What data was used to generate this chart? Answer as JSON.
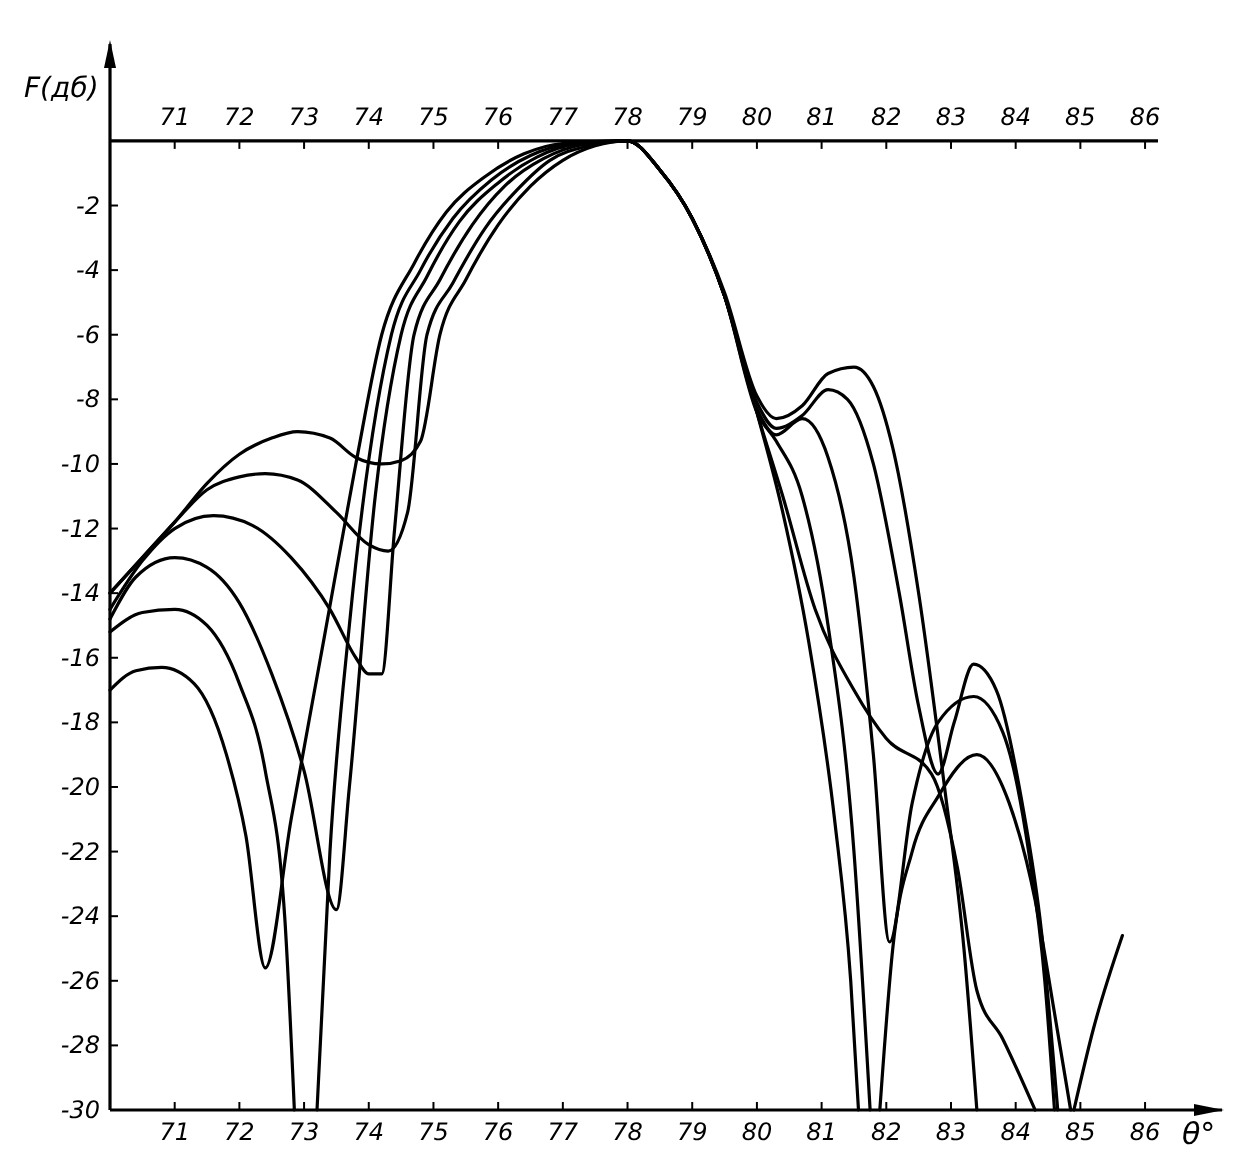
{
  "chart_data": {
    "type": "line",
    "ylabel": "F(дб)",
    "xlabel": "θ°",
    "xlim": [
      70,
      86.2
    ],
    "ylim": [
      -30,
      3
    ],
    "xticks": [
      71,
      72,
      73,
      74,
      75,
      76,
      77,
      78,
      79,
      80,
      81,
      82,
      83,
      84,
      85,
      86
    ],
    "x2lim": [
      70,
      86.2
    ],
    "x2ticks": [
      71,
      72,
      73,
      74,
      75,
      76,
      77,
      78,
      79,
      80,
      81,
      82,
      83,
      84,
      85,
      86
    ],
    "yticks": [
      {
        "value": 0,
        "label": null
      },
      -2,
      -4,
      -6,
      -8,
      -10,
      -12,
      -14,
      -16,
      -18,
      -20,
      -22,
      -24,
      -26,
      -28,
      -30
    ],
    "grid": false,
    "marker": "none",
    "line_style": "solid",
    "series": [
      {
        "color": "#000000",
        "x": [
          70,
          70.5,
          71,
          71.5,
          72,
          72.5,
          72.9,
          73.4,
          73.8,
          74.2,
          74.5,
          74.8,
          75.1,
          75.5,
          76,
          76.5,
          77,
          77.5,
          78,
          78.5,
          79,
          79.5,
          80,
          80.3,
          80.7,
          81.1,
          81.5,
          81.8,
          82.1,
          82.5,
          82.9,
          83.2,
          83.4
        ],
        "values": [
          -14,
          -12.9,
          -11.8,
          -10.6,
          -9.7,
          -9.2,
          -9,
          -9.2,
          -9.8,
          -10,
          -9.9,
          -9.3,
          -6,
          -4.3,
          -2.6,
          -1.4,
          -0.6,
          -0.15,
          0,
          -0.9,
          -2.4,
          -4.7,
          -7.9,
          -8.6,
          -8.2,
          -7.2,
          -7,
          -7.6,
          -9.5,
          -14,
          -20,
          -25,
          -30
        ]
      },
      {
        "color": "#000000",
        "x": [
          70,
          70.5,
          71,
          71.5,
          72,
          72.4,
          72.9,
          73.5,
          74,
          74.3,
          74.6,
          74.9,
          75.3,
          75.8,
          76.3,
          76.8,
          77.4,
          78,
          78.5,
          79,
          79.5,
          80,
          80.3,
          80.7,
          81.1,
          81.4,
          81.8,
          82.2,
          82.5,
          82.8,
          83.05,
          83.35,
          83.7,
          84.1,
          84.4,
          84.65
        ],
        "values": [
          -14,
          -12.9,
          -11.8,
          -10.8,
          -10.4,
          -10.3,
          -10.5,
          -11.5,
          -12.5,
          -12.7,
          -11.5,
          -6,
          -4.4,
          -2.7,
          -1.5,
          -0.6,
          -0.15,
          0,
          -0.9,
          -2.4,
          -4.8,
          -8.1,
          -8.9,
          -8.5,
          -7.7,
          -8,
          -10,
          -14,
          -17.5,
          -19.6,
          -18,
          -16.2,
          -17,
          -20.5,
          -24.5,
          -30
        ]
      },
      {
        "color": "#000000",
        "x": [
          70,
          70.5,
          71,
          71.6,
          72.2,
          72.8,
          73.4,
          73.8,
          74,
          74.2,
          74.4,
          74.7,
          75.1,
          75.6,
          76.1,
          76.7,
          77.3,
          78,
          78.5,
          79,
          79.5,
          80,
          80.3,
          80.7,
          81.1,
          81.5,
          81.8,
          82.05,
          82.4,
          82.8,
          83.35,
          83.8,
          84.2,
          84.45,
          84.6
        ],
        "values": [
          -14.5,
          -13,
          -12,
          -11.6,
          -11.9,
          -12.9,
          -14.5,
          -16,
          -16.5,
          -16.5,
          -12,
          -6,
          -4.3,
          -2.6,
          -1.4,
          -0.55,
          -0.12,
          0,
          -0.9,
          -2.4,
          -4.8,
          -8.3,
          -9.1,
          -8.6,
          -9.8,
          -13.5,
          -19,
          -24.8,
          -20.5,
          -18,
          -17.2,
          -18.3,
          -22,
          -26,
          -30
        ]
      },
      {
        "color": "#000000",
        "x": [
          70,
          70.4,
          71,
          71.5,
          72,
          72.5,
          73,
          73.5,
          73.7,
          74.1,
          74.5,
          74.9,
          75.4,
          76,
          76.6,
          77.2,
          78,
          78.5,
          79,
          79.5,
          80,
          80.3,
          80.7,
          81.1,
          81.5,
          81.75,
          81.82,
          81.9,
          82.1,
          82.4,
          82.8,
          83.4,
          83.9,
          84.3,
          84.6,
          84.85,
          84.87,
          84.9,
          85.2,
          85.65
        ],
        "values": [
          -14.8,
          -13.5,
          -12.9,
          -13.2,
          -14.3,
          -16.5,
          -19.5,
          -23.8,
          -20,
          -11,
          -6,
          -4.2,
          -2.5,
          -1.3,
          -0.5,
          -0.1,
          0,
          -0.9,
          -2.4,
          -4.8,
          -8.4,
          -9.3,
          -11,
          -15,
          -22,
          -30,
          null,
          -30,
          -25,
          -22,
          -20.3,
          -19,
          -20.5,
          -23.5,
          -27,
          -30,
          null,
          -30,
          -27.5,
          -24.6
        ]
      },
      {
        "color": "#000000",
        "x": [
          70,
          70.5,
          71,
          71.5,
          72,
          72.4,
          72.7,
          72.85,
          73,
          73.2,
          73.4,
          73.7,
          74.35,
          74.8,
          75.3,
          75.9,
          76.5,
          77.1,
          78,
          78.5,
          79,
          79.5,
          80,
          80.4,
          80.8,
          81.2,
          81.45,
          81.57
        ],
        "values": [
          -15.2,
          -14.6,
          -14.5,
          -15,
          -16.8,
          -19.5,
          -24,
          -30,
          null,
          -30,
          -22,
          -15,
          -6,
          -4,
          -2.4,
          -1.2,
          -0.45,
          -0.1,
          0,
          -0.9,
          -2.4,
          -4.8,
          -8.4,
          -11.5,
          -15.5,
          -21,
          -26,
          -30
        ]
      },
      {
        "color": "#000000",
        "x": [
          70,
          70.4,
          70.8,
          71.3,
          71.8,
          72.1,
          72.4,
          72.8,
          73.3,
          73.8,
          74.2,
          74.7,
          75.2,
          75.8,
          76.4,
          77,
          78,
          78.5,
          79,
          79.5,
          80,
          80.4,
          80.9,
          81.5,
          82,
          82.7,
          83.1,
          83.4,
          83.8,
          84.3
        ],
        "values": [
          -17,
          -16.4,
          -16.3,
          -16.8,
          -19,
          -21.5,
          -25.6,
          -21,
          -15.5,
          -10,
          -6,
          -3.8,
          -2.2,
          -1.1,
          -0.4,
          -0.08,
          0,
          -0.9,
          -2.4,
          -4.8,
          -8.4,
          -11,
          -14.5,
          -17,
          -18.5,
          -19.6,
          -22.5,
          -26.3,
          -27.8,
          -30
        ]
      }
    ]
  }
}
